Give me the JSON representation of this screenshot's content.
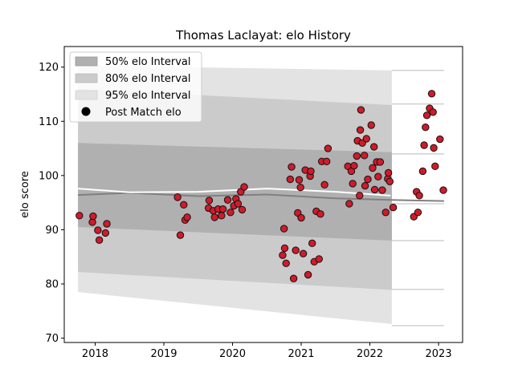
{
  "chart_data": {
    "type": "scatter",
    "title": "Thomas Laclayat: elo History",
    "xlabel": "",
    "ylabel": "elo score",
    "xlim": [
      2017.55,
      2023.35
    ],
    "ylim": [
      69.2,
      123.8
    ],
    "xticks": [
      2018,
      2019,
      2020,
      2021,
      2022,
      2023
    ],
    "yticks": [
      70,
      80,
      90,
      100,
      110,
      120
    ],
    "xtick_labels": [
      "2018",
      "2019",
      "2020",
      "2021",
      "2022",
      "2023"
    ],
    "ytick_labels": [
      "70",
      "80",
      "90",
      "100",
      "110",
      "120"
    ],
    "legend": {
      "position": "upper-left",
      "entries": [
        "50% elo Interval",
        "80% elo Interval",
        "95% elo Interval",
        "Post Match elo"
      ]
    },
    "colors": {
      "band50": "#b0b0b0",
      "band80": "#cbcbcb",
      "band95": "#e3e3e3",
      "point_fill": "#d11a2a",
      "point_edge": "#111111",
      "mean_line": "#808080",
      "median_line": "#ffffff"
    },
    "bands": {
      "x_start": 2017.75,
      "x_end": 2022.32,
      "ext_x_end": 2023.08,
      "band95": {
        "lower": [
          78.5,
          72.6
        ],
        "upper": [
          120.3,
          119.4
        ]
      },
      "band80": {
        "lower": [
          82.2,
          78.9
        ],
        "upper": [
          116.0,
          113.0
        ]
      },
      "band50": {
        "lower": [
          90.5,
          88.0
        ],
        "upper": [
          106.0,
          104.3
        ]
      },
      "ext_lines": [
        72.3,
        79.0,
        88.0,
        94.8,
        104.0,
        113.2,
        119.4
      ]
    },
    "lines": [
      {
        "name": "mean",
        "x": [
          2017.75,
          2018.5,
          2019.5,
          2020.5,
          2021.5,
          2022.3,
          2023.08
        ],
        "y": [
          96.4,
          96.8,
          96.2,
          96.5,
          95.8,
          95.5,
          95.3
        ]
      },
      {
        "name": "median",
        "x": [
          2017.75,
          2018.5,
          2019.5,
          2020.5,
          2021.5,
          2022.3
        ],
        "y": [
          97.6,
          96.9,
          97.0,
          97.6,
          97.0,
          96.3
        ]
      }
    ],
    "series": [
      {
        "name": "Post Match elo",
        "points": [
          [
            2017.77,
            92.6
          ],
          [
            2017.96,
            91.4
          ],
          [
            2017.97,
            92.5
          ],
          [
            2018.04,
            89.9
          ],
          [
            2018.06,
            88.1
          ],
          [
            2018.15,
            89.4
          ],
          [
            2018.17,
            91.1
          ],
          [
            2019.2,
            96.0
          ],
          [
            2019.24,
            89.0
          ],
          [
            2019.29,
            94.6
          ],
          [
            2019.31,
            91.8
          ],
          [
            2019.34,
            92.3
          ],
          [
            2019.65,
            94.0
          ],
          [
            2019.66,
            95.4
          ],
          [
            2019.72,
            93.5
          ],
          [
            2019.74,
            92.3
          ],
          [
            2019.79,
            93.8
          ],
          [
            2019.84,
            92.6
          ],
          [
            2019.86,
            93.8
          ],
          [
            2019.93,
            95.5
          ],
          [
            2019.97,
            93.2
          ],
          [
            2020.02,
            94.4
          ],
          [
            2020.05,
            95.7
          ],
          [
            2020.08,
            94.8
          ],
          [
            2020.12,
            97.0
          ],
          [
            2020.14,
            93.7
          ],
          [
            2020.17,
            97.9
          ],
          [
            2020.73,
            85.3
          ],
          [
            2020.75,
            90.2
          ],
          [
            2020.76,
            86.6
          ],
          [
            2020.78,
            83.8
          ],
          [
            2020.84,
            99.3
          ],
          [
            2020.86,
            101.6
          ],
          [
            2020.89,
            81.0
          ],
          [
            2020.92,
            86.2
          ],
          [
            2020.95,
            93.1
          ],
          [
            2020.97,
            99.2
          ],
          [
            2020.99,
            97.8
          ],
          [
            2021.0,
            92.2
          ],
          [
            2021.03,
            85.6
          ],
          [
            2021.06,
            101.0
          ],
          [
            2021.1,
            81.7
          ],
          [
            2021.13,
            99.9
          ],
          [
            2021.14,
            100.8
          ],
          [
            2021.16,
            87.5
          ],
          [
            2021.19,
            84.1
          ],
          [
            2021.22,
            93.4
          ],
          [
            2021.26,
            84.6
          ],
          [
            2021.28,
            92.9
          ],
          [
            2021.3,
            102.6
          ],
          [
            2021.34,
            98.3
          ],
          [
            2021.37,
            102.6
          ],
          [
            2021.39,
            105.0
          ],
          [
            2021.68,
            101.7
          ],
          [
            2021.7,
            94.8
          ],
          [
            2021.73,
            100.8
          ],
          [
            2021.75,
            98.5
          ],
          [
            2021.77,
            101.8
          ],
          [
            2021.81,
            103.6
          ],
          [
            2021.82,
            106.4
          ],
          [
            2021.85,
            96.3
          ],
          [
            2021.86,
            108.4
          ],
          [
            2021.87,
            112.1
          ],
          [
            2021.89,
            106.0
          ],
          [
            2021.92,
            103.7
          ],
          [
            2021.93,
            98.1
          ],
          [
            2021.95,
            106.8
          ],
          [
            2021.97,
            99.3
          ],
          [
            2022.02,
            109.3
          ],
          [
            2022.04,
            101.4
          ],
          [
            2022.06,
            105.3
          ],
          [
            2022.07,
            97.4
          ],
          [
            2022.1,
            102.5
          ],
          [
            2022.12,
            99.8
          ],
          [
            2022.15,
            102.5
          ],
          [
            2022.18,
            97.3
          ],
          [
            2022.23,
            93.2
          ],
          [
            2022.26,
            99.4
          ],
          [
            2022.27,
            100.5
          ],
          [
            2022.29,
            98.9
          ],
          [
            2022.34,
            94.1
          ],
          [
            2022.64,
            92.4
          ],
          [
            2022.68,
            97.0
          ],
          [
            2022.7,
            93.2
          ],
          [
            2022.72,
            96.3
          ],
          [
            2022.77,
            100.8
          ],
          [
            2022.79,
            105.6
          ],
          [
            2022.81,
            108.9
          ],
          [
            2022.83,
            111.1
          ],
          [
            2022.87,
            112.4
          ],
          [
            2022.9,
            115.1
          ],
          [
            2022.92,
            111.7
          ],
          [
            2022.93,
            105.1
          ],
          [
            2022.95,
            101.7
          ],
          [
            2023.02,
            106.7
          ],
          [
            2023.07,
            97.3
          ]
        ]
      }
    ]
  }
}
